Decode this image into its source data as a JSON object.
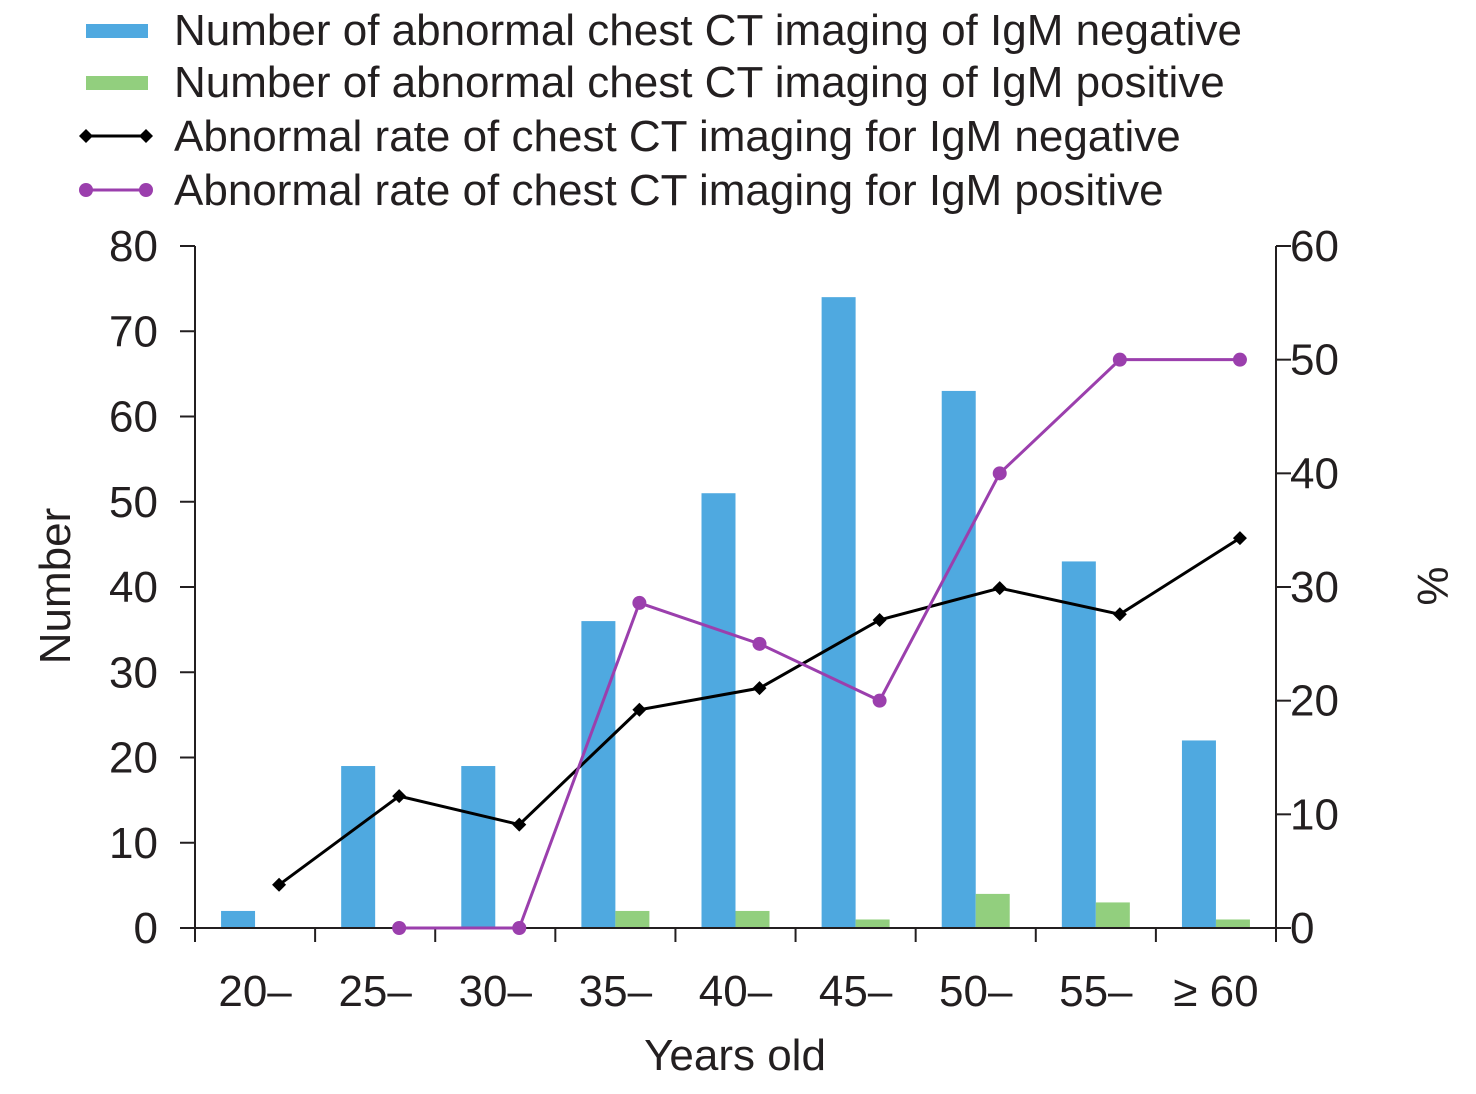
{
  "chart_data": {
    "type": "bar",
    "xlabel": "Years old",
    "ylabel": "Number",
    "y2label": "%",
    "ylim": [
      0,
      80
    ],
    "y2lim": [
      0,
      60
    ],
    "yticks": [
      "0",
      "10",
      "20",
      "30",
      "40",
      "50",
      "60",
      "70",
      "80"
    ],
    "y2ticks": [
      "0",
      "10",
      "20",
      "30",
      "40",
      "50",
      "60"
    ],
    "categories": [
      "20–",
      "25–",
      "30–",
      "35–",
      "40–",
      "45–",
      "50–",
      "55–",
      "≥ 60"
    ],
    "legend_position": "top",
    "series": [
      {
        "name": "Number of abnormal chest CT imaging of IgM negative",
        "kind": "bar",
        "axis": "left",
        "color": "#4fa9e0",
        "values": [
          2,
          19,
          19,
          36,
          51,
          74,
          63,
          43,
          22
        ]
      },
      {
        "name": "Number of abnormal chest CT imaging of IgM positive",
        "kind": "bar",
        "axis": "left",
        "color": "#92cf7e",
        "values": [
          0,
          0,
          0,
          2,
          2,
          1,
          4,
          3,
          1
        ]
      },
      {
        "name": "Abnormal rate of chest CT imaging for IgM negative",
        "kind": "line",
        "marker": "diamond",
        "axis": "right",
        "color": "#000000",
        "values": [
          3.8,
          11.6,
          9.1,
          19.2,
          21.1,
          27.1,
          29.9,
          27.6,
          34.3
        ]
      },
      {
        "name": "Abnormal rate of chest CT imaging for IgM positive",
        "kind": "line",
        "marker": "circle",
        "axis": "right",
        "color": "#9b3fad",
        "values": [
          null,
          0,
          0,
          28.6,
          25.0,
          20.0,
          40.0,
          50.0,
          50.0
        ]
      }
    ]
  }
}
